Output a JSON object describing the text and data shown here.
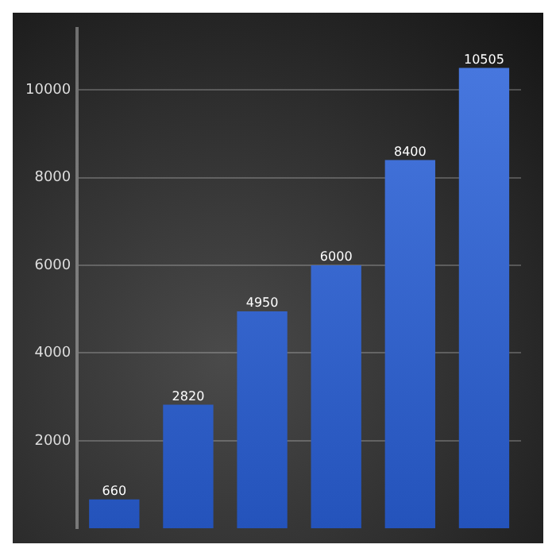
{
  "chart_data": {
    "type": "bar",
    "categories": [
      null,
      null,
      null,
      null,
      null,
      null
    ],
    "values": [
      660,
      2820,
      4950,
      6000,
      8400,
      10505
    ],
    "color": "#2a62dc",
    "ylim": [
      0,
      11400
    ],
    "yticks": [
      2000,
      4000,
      6000,
      8000,
      10000
    ],
    "grid": "y",
    "data_labels": true,
    "legend": false
  }
}
